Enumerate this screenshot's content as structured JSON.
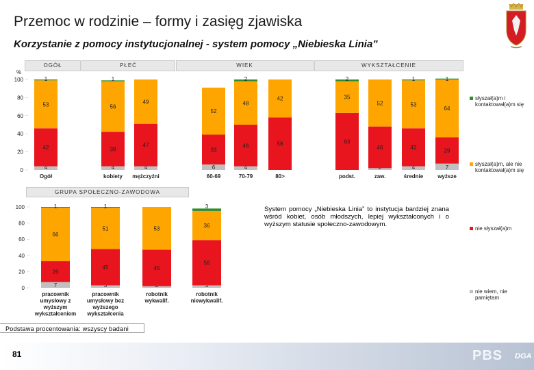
{
  "header": {
    "title": "Przemoc w rodzinie – formy i zasięg zjawiska",
    "subtitle": "Korzystanie z pomocy instytucjonalnej - system pomocy „Niebieska Linia”"
  },
  "group_labels": {
    "ogol": "OGÓŁ",
    "plec": "PŁEĆ",
    "wiek": "WIEK",
    "wyksztalcenie": "WYKSZTAŁCENIE",
    "grupa": "GRUPA SPOŁECZNO-ZAWODOWA"
  },
  "note": "System pomocy „Niebieska Linia” to instytucja bardziej znana wśród kobiet, osób młodszych, lepiej wykształconych i o wyższym statusie społeczno-zawodowym.",
  "basis": "Podstawa procentowania: wszyscy badani",
  "page_number": "81",
  "brand": "PBS",
  "brand2": "DGA",
  "colors": {
    "heard_contacted": "#2e8b2e",
    "heard_not_contacted": "#ffa500",
    "not_heard": "#e8141e",
    "dont_know": "#c0c0c0"
  },
  "chart_data": [
    {
      "type": "bar",
      "stacked": true,
      "y_unit": "%",
      "ylim": [
        0,
        100
      ],
      "yticks": [
        0,
        20,
        40,
        60,
        80,
        100
      ],
      "legend_position": "right",
      "categories": [
        "Ogół",
        "kobiety",
        "mężczyźni",
        "60-69",
        "70-79",
        "80>",
        "podst.",
        "zaw.",
        "średnie",
        "wyższe"
      ],
      "series": [
        {
          "name": "nie wiem, nie pamiętam",
          "values": [
            4,
            4,
            4,
            6,
            4,
            0,
            0,
            2,
            4,
            7
          ]
        },
        {
          "name": "nie słyszał(a)m",
          "values": [
            42,
            38,
            47,
            33,
            46,
            58,
            63,
            46,
            42,
            29
          ]
        },
        {
          "name": "słyszał(a)m, ale nie kontaktował(a)m się",
          "values": [
            53,
            56,
            49,
            52,
            48,
            42,
            35,
            52,
            53,
            64
          ]
        },
        {
          "name": "słyszał(a)m i kontaktował(a)m się",
          "values": [
            1,
            1,
            0,
            0,
            2,
            0,
            2,
            0,
            1,
            1
          ]
        }
      ],
      "labels": [
        [
          4,
          42,
          53,
          1
        ],
        [
          4,
          38,
          56,
          1
        ],
        [
          4,
          47,
          49,
          null
        ],
        [
          6,
          33,
          52,
          null
        ],
        [
          4,
          46,
          48,
          2
        ],
        [
          null,
          58,
          42,
          null
        ],
        [
          null,
          63,
          35,
          2
        ],
        [
          2,
          46,
          52,
          null
        ],
        [
          4,
          42,
          53,
          1
        ],
        [
          7,
          29,
          64,
          1
        ]
      ]
    },
    {
      "type": "bar",
      "stacked": true,
      "y_unit": "%",
      "ylim": [
        0,
        100
      ],
      "yticks": [
        0,
        20,
        40,
        60,
        80,
        100
      ],
      "categories": [
        [
          "pracownik",
          "umysłowy z",
          "wyższym",
          "wykształceniem"
        ],
        [
          "pracownik",
          "umysłowy bez",
          "wyższego",
          "wykształcenia"
        ],
        [
          "robotnik",
          "wykwalif."
        ],
        [
          "robotnik",
          "niewykwalif."
        ]
      ],
      "series": [
        {
          "name": "nie wiem, nie pamiętam",
          "values": [
            7,
            3,
            2,
            3
          ]
        },
        {
          "name": "nie słyszał(a)m",
          "values": [
            26,
            45,
            45,
            56
          ]
        },
        {
          "name": "słyszał(a)m, ale nie kontaktował(a)m się",
          "values": [
            66,
            51,
            53,
            36
          ]
        },
        {
          "name": "słyszał(a)m i kontaktował(a)m się",
          "values": [
            1,
            1,
            0,
            3
          ]
        }
      ],
      "labels": [
        [
          7,
          26,
          66,
          1
        ],
        [
          3,
          45,
          51,
          1
        ],
        [
          2,
          45,
          53,
          null
        ],
        [
          3,
          56,
          36,
          3
        ]
      ]
    }
  ]
}
